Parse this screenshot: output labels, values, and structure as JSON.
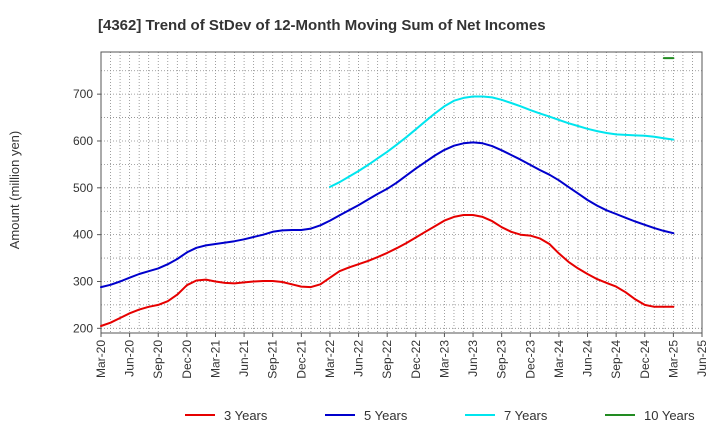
{
  "chart_data": {
    "type": "line",
    "title": "[4362]  Trend of StDev of 12-Month Moving Sum of Net Incomes",
    "xlabel": "",
    "ylabel": "Amount (million yen)",
    "ylim": [
      190,
      790
    ],
    "yticks": [
      200,
      300,
      400,
      500,
      600,
      700
    ],
    "xticks": [
      "Mar-20",
      "Jun-20",
      "Sep-20",
      "Dec-20",
      "Mar-21",
      "Jun-21",
      "Sep-21",
      "Dec-21",
      "Mar-22",
      "Jun-22",
      "Sep-22",
      "Dec-22",
      "Mar-23",
      "Jun-23",
      "Sep-23",
      "Dec-23",
      "Mar-24",
      "Jun-24",
      "Sep-24",
      "Dec-24",
      "Mar-25",
      "Jun-25"
    ],
    "x_start": "Mar-20",
    "grid": true,
    "legend_position": "bottom",
    "series": [
      {
        "name": "3 Years",
        "color": "#e60000",
        "x": [
          "2020-03",
          "2020-04",
          "2020-05",
          "2020-06",
          "2020-07",
          "2020-08",
          "2020-09",
          "2020-10",
          "2020-11",
          "2020-12",
          "2021-01",
          "2021-02",
          "2021-03",
          "2021-04",
          "2021-05",
          "2021-06",
          "2021-07",
          "2021-08",
          "2021-09",
          "2021-10",
          "2021-11",
          "2021-12",
          "2022-01",
          "2022-02",
          "2022-03",
          "2022-04",
          "2022-05",
          "2022-06",
          "2022-07",
          "2022-08",
          "2022-09",
          "2022-10",
          "2022-11",
          "2022-12",
          "2023-01",
          "2023-02",
          "2023-03",
          "2023-04",
          "2023-05",
          "2023-06",
          "2023-07",
          "2023-08",
          "2023-09",
          "2023-10",
          "2023-11",
          "2023-12",
          "2024-01",
          "2024-02",
          "2024-03",
          "2024-04",
          "2024-05",
          "2024-06",
          "2024-07",
          "2024-08",
          "2024-09",
          "2024-10",
          "2024-11",
          "2024-12",
          "2025-01",
          "2025-02",
          "2025-03"
        ],
        "values": [
          205,
          212,
          222,
          232,
          240,
          246,
          250,
          258,
          272,
          292,
          302,
          304,
          300,
          297,
          296,
          298,
          300,
          301,
          301,
          299,
          294,
          289,
          288,
          294,
          308,
          322,
          330,
          337,
          344,
          352,
          361,
          371,
          382,
          394,
          406,
          418,
          430,
          438,
          442,
          442,
          438,
          429,
          416,
          406,
          400,
          398,
          392,
          380,
          360,
          342,
          328,
          316,
          305,
          297,
          289,
          277,
          262,
          250,
          246,
          246,
          246
        ]
      },
      {
        "name": "5 Years",
        "color": "#0000cc",
        "x": [
          "2020-03",
          "2020-04",
          "2020-05",
          "2020-06",
          "2020-07",
          "2020-08",
          "2020-09",
          "2020-10",
          "2020-11",
          "2020-12",
          "2021-01",
          "2021-02",
          "2021-03",
          "2021-04",
          "2021-05",
          "2021-06",
          "2021-07",
          "2021-08",
          "2021-09",
          "2021-10",
          "2021-11",
          "2021-12",
          "2022-01",
          "2022-02",
          "2022-03",
          "2022-04",
          "2022-05",
          "2022-06",
          "2022-07",
          "2022-08",
          "2022-09",
          "2022-10",
          "2022-11",
          "2022-12",
          "2023-01",
          "2023-02",
          "2023-03",
          "2023-04",
          "2023-05",
          "2023-06",
          "2023-07",
          "2023-08",
          "2023-09",
          "2023-10",
          "2023-11",
          "2023-12",
          "2024-01",
          "2024-02",
          "2024-03",
          "2024-04",
          "2024-05",
          "2024-06",
          "2024-07",
          "2024-08",
          "2024-09",
          "2024-10",
          "2024-11",
          "2024-12",
          "2025-01",
          "2025-02",
          "2025-03"
        ],
        "values": [
          288,
          293,
          300,
          308,
          316,
          322,
          328,
          337,
          348,
          362,
          372,
          377,
          380,
          383,
          386,
          390,
          395,
          400,
          406,
          409,
          410,
          410,
          413,
          420,
          430,
          441,
          452,
          463,
          475,
          487,
          498,
          511,
          526,
          541,
          555,
          569,
          581,
          590,
          595,
          597,
          595,
          589,
          580,
          570,
          560,
          549,
          538,
          528,
          516,
          502,
          488,
          474,
          462,
          452,
          444,
          436,
          428,
          421,
          414,
          408,
          403
        ]
      },
      {
        "name": "7 Years",
        "color": "#00e5ee",
        "x": [
          "2022-03",
          "2022-04",
          "2022-05",
          "2022-06",
          "2022-07",
          "2022-08",
          "2022-09",
          "2022-10",
          "2022-11",
          "2022-12",
          "2023-01",
          "2023-02",
          "2023-03",
          "2023-04",
          "2023-05",
          "2023-06",
          "2023-07",
          "2023-08",
          "2023-09",
          "2023-10",
          "2023-11",
          "2023-12",
          "2024-01",
          "2024-02",
          "2024-03",
          "2024-04",
          "2024-05",
          "2024-06",
          "2024-07",
          "2024-08",
          "2024-09",
          "2024-10",
          "2024-11",
          "2024-12",
          "2025-01",
          "2025-02",
          "2025-03"
        ],
        "values": [
          502,
          512,
          524,
          536,
          549,
          563,
          577,
          592,
          608,
          625,
          642,
          659,
          674,
          686,
          692,
          695,
          695,
          693,
          688,
          681,
          674,
          666,
          659,
          652,
          645,
          638,
          632,
          626,
          621,
          617,
          614,
          613,
          612,
          611,
          609,
          606,
          603
        ]
      },
      {
        "name": "10 Years",
        "color": "#228b22",
        "x": [
          "2025-02",
          "2025-03"
        ],
        "values": [
          777,
          777
        ]
      }
    ]
  }
}
